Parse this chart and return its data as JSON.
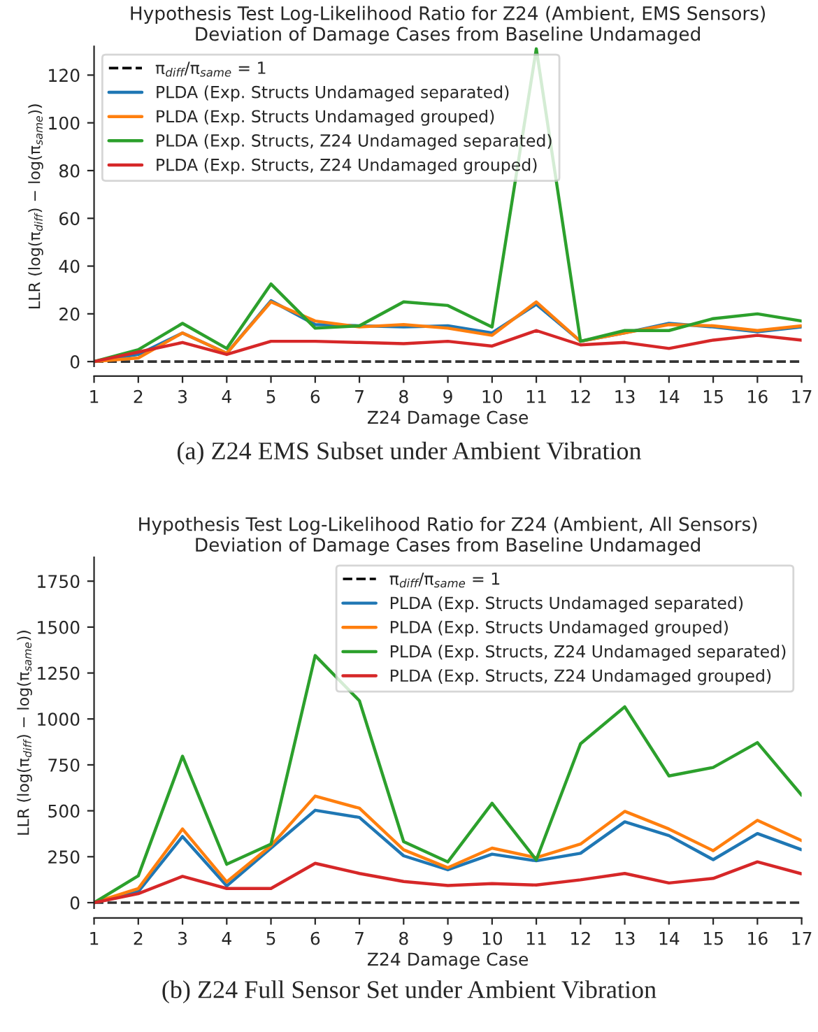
{
  "chart_data": [
    {
      "type": "line",
      "title": "Hypothesis Test Log-Likelihood Ratio for Z24 (Ambient, EMS Sensors)\nDeviation of Damage Cases from Baseline Undamaged",
      "xlabel": "Z24 Damage Case",
      "ylabel": "LLR (log(π$_{diff}$) − log(π$_{same}$))",
      "x": [
        1,
        2,
        3,
        4,
        5,
        6,
        7,
        8,
        9,
        10,
        11,
        12,
        13,
        14,
        15,
        16,
        17
      ],
      "xlim": [
        1,
        17
      ],
      "xticks": [
        1,
        2,
        3,
        4,
        5,
        6,
        7,
        8,
        9,
        10,
        11,
        12,
        13,
        14,
        15,
        16,
        17
      ],
      "ylim": [
        -2,
        132
      ],
      "yticks": [
        0,
        20,
        40,
        60,
        80,
        100,
        120
      ],
      "grid": false,
      "legend": "top left",
      "series": [
        {
          "name": "π$_{diff}$/π$_{same}$ = 1",
          "color": "#000000",
          "line_style": "dashed",
          "values": [
            0,
            0,
            0,
            0,
            0,
            0,
            0,
            0,
            0,
            0,
            0,
            0,
            0,
            0,
            0,
            0,
            0
          ]
        },
        {
          "name": "PLDA (Exp. Structs Undamaged separated)",
          "color": "#1f77b4",
          "values": [
            0,
            3,
            12,
            3.5,
            25.5,
            15.5,
            15,
            14.5,
            15,
            12,
            24,
            8.5,
            12,
            16,
            14.5,
            12.5,
            14.5
          ]
        },
        {
          "name": "PLDA (Exp. Structs Undamaged grouped)",
          "color": "#ff7f0e",
          "values": [
            0,
            1.5,
            12,
            3.5,
            25,
            17,
            14.5,
            15.5,
            14,
            11,
            25,
            8.5,
            12,
            15.5,
            15,
            13,
            15
          ]
        },
        {
          "name": "PLDA (Exp. Structs, Z24 Undamaged separated)",
          "color": "#2ca02c",
          "values": [
            0,
            5,
            16,
            5.5,
            32.5,
            14,
            15,
            25,
            23.5,
            14.5,
            131,
            8.5,
            13,
            13,
            18,
            20,
            17
          ]
        },
        {
          "name": "PLDA (Exp. Structs, Z24 Undamaged grouped)",
          "color": "#d62728",
          "values": [
            0,
            4,
            8,
            3,
            8.5,
            8.5,
            8,
            7.5,
            8.5,
            6.5,
            13,
            7,
            8,
            5.5,
            9,
            11,
            9
          ]
        }
      ],
      "annotations": [
        "(a) Z24 EMS Subset under Ambient Vibration"
      ]
    },
    {
      "type": "line",
      "title": "Hypothesis Test Log-Likelihood Ratio for Z24 (Ambient, All Sensors)\nDeviation of Damage Cases from Baseline Undamaged",
      "xlabel": "Z24 Damage Case",
      "ylabel": "LLR (log(π$_{diff}$) − log(π$_{same}$))",
      "x": [
        1,
        2,
        3,
        4,
        5,
        6,
        7,
        8,
        9,
        10,
        11,
        12,
        13,
        14,
        15,
        16,
        17
      ],
      "xlim": [
        1,
        17
      ],
      "xticks": [
        1,
        2,
        3,
        4,
        5,
        6,
        7,
        8,
        9,
        10,
        11,
        12,
        13,
        14,
        15,
        16,
        17
      ],
      "ylim": [
        -30,
        1880
      ],
      "yticks": [
        0,
        250,
        500,
        750,
        1000,
        1250,
        1500,
        1750
      ],
      "grid": false,
      "legend": "top right",
      "series": [
        {
          "name": "π$_{diff}$/π$_{same}$ = 1",
          "color": "#000000",
          "line_style": "dashed",
          "values": [
            0,
            0,
            0,
            0,
            0,
            0,
            0,
            0,
            0,
            0,
            0,
            0,
            0,
            0,
            0,
            0,
            0
          ]
        },
        {
          "name": "PLDA (Exp. Structs Undamaged separated)",
          "color": "#1f77b4",
          "values": [
            0,
            60,
            360,
            91,
            297,
            503,
            464,
            255,
            179,
            264,
            228,
            269,
            440,
            365,
            234,
            376,
            288
          ]
        },
        {
          "name": "PLDA (Exp. Structs Undamaged grouped)",
          "color": "#ff7f0e",
          "values": [
            0,
            77,
            401,
            113,
            310,
            580,
            514,
            288,
            190,
            297,
            245,
            319,
            497,
            401,
            283,
            448,
            338
          ]
        },
        {
          "name": "PLDA (Exp. Structs, Z24 Undamaged separated)",
          "color": "#2ca02c",
          "values": [
            0,
            146,
            797,
            209,
            319,
            1345,
            1099,
            332,
            222,
            541,
            233,
            865,
            1066,
            690,
            736,
            871,
            585
          ]
        },
        {
          "name": "PLDA (Exp. Structs, Z24 Undamaged grouped)",
          "color": "#d62728",
          "values": [
            0,
            49,
            143,
            77,
            77,
            214,
            159,
            115,
            93,
            104,
            96,
            124,
            159,
            107,
            132,
            222,
            157
          ]
        }
      ],
      "annotations": [
        "(b) Z24 Full Sensor Set under Ambient Vibration"
      ]
    }
  ]
}
